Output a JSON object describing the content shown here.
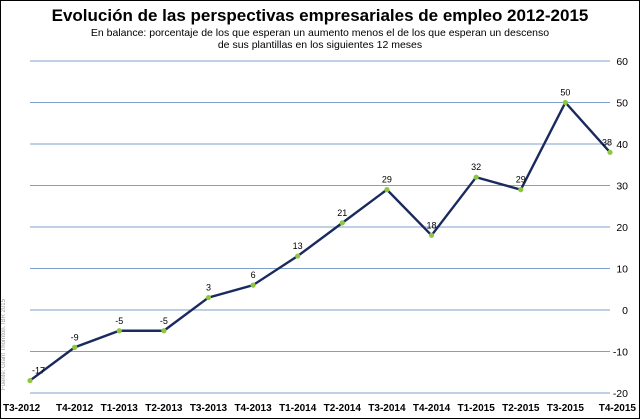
{
  "chart_data": {
    "type": "line",
    "title": "Evolución de las perspectivas empresariales de empleo 2012-2015",
    "subtitle": "En balance: porcentaje de los que esperan un aumento menos el de los que esperan un descenso de sus plantillas en los siguientes 12 meses",
    "source": "Fuente: Grant Thornton. IBR 2015",
    "categories": [
      "T3-2012",
      "T4-2012",
      "T1-2013",
      "T2-2013",
      "T3-2013",
      "T4-2013",
      "T1-2014",
      "T2-2014",
      "T3-2014",
      "T4-2014",
      "T1-2015",
      "T2-2015",
      "T3-2015",
      "T4-2015"
    ],
    "values": [
      -17,
      -9,
      -5,
      -5,
      3,
      6,
      13,
      21,
      29,
      18,
      32,
      29,
      50,
      38
    ],
    "data_labels": [
      "-17",
      "-9",
      "-5",
      "-5",
      "3",
      "6",
      "13",
      "21",
      "29",
      "18",
      "32",
      "29",
      "50",
      "38"
    ],
    "y_ticks": [
      "60",
      "50",
      "40",
      "30",
      "20",
      "10",
      "0",
      "-10",
      "-20"
    ],
    "ylim": [
      -20,
      60
    ],
    "y_axis_side": "right",
    "grid": true,
    "colors": {
      "line": "#1a2a5e",
      "marker": "#8dc63f",
      "grid": "#7f9fcc"
    }
  }
}
